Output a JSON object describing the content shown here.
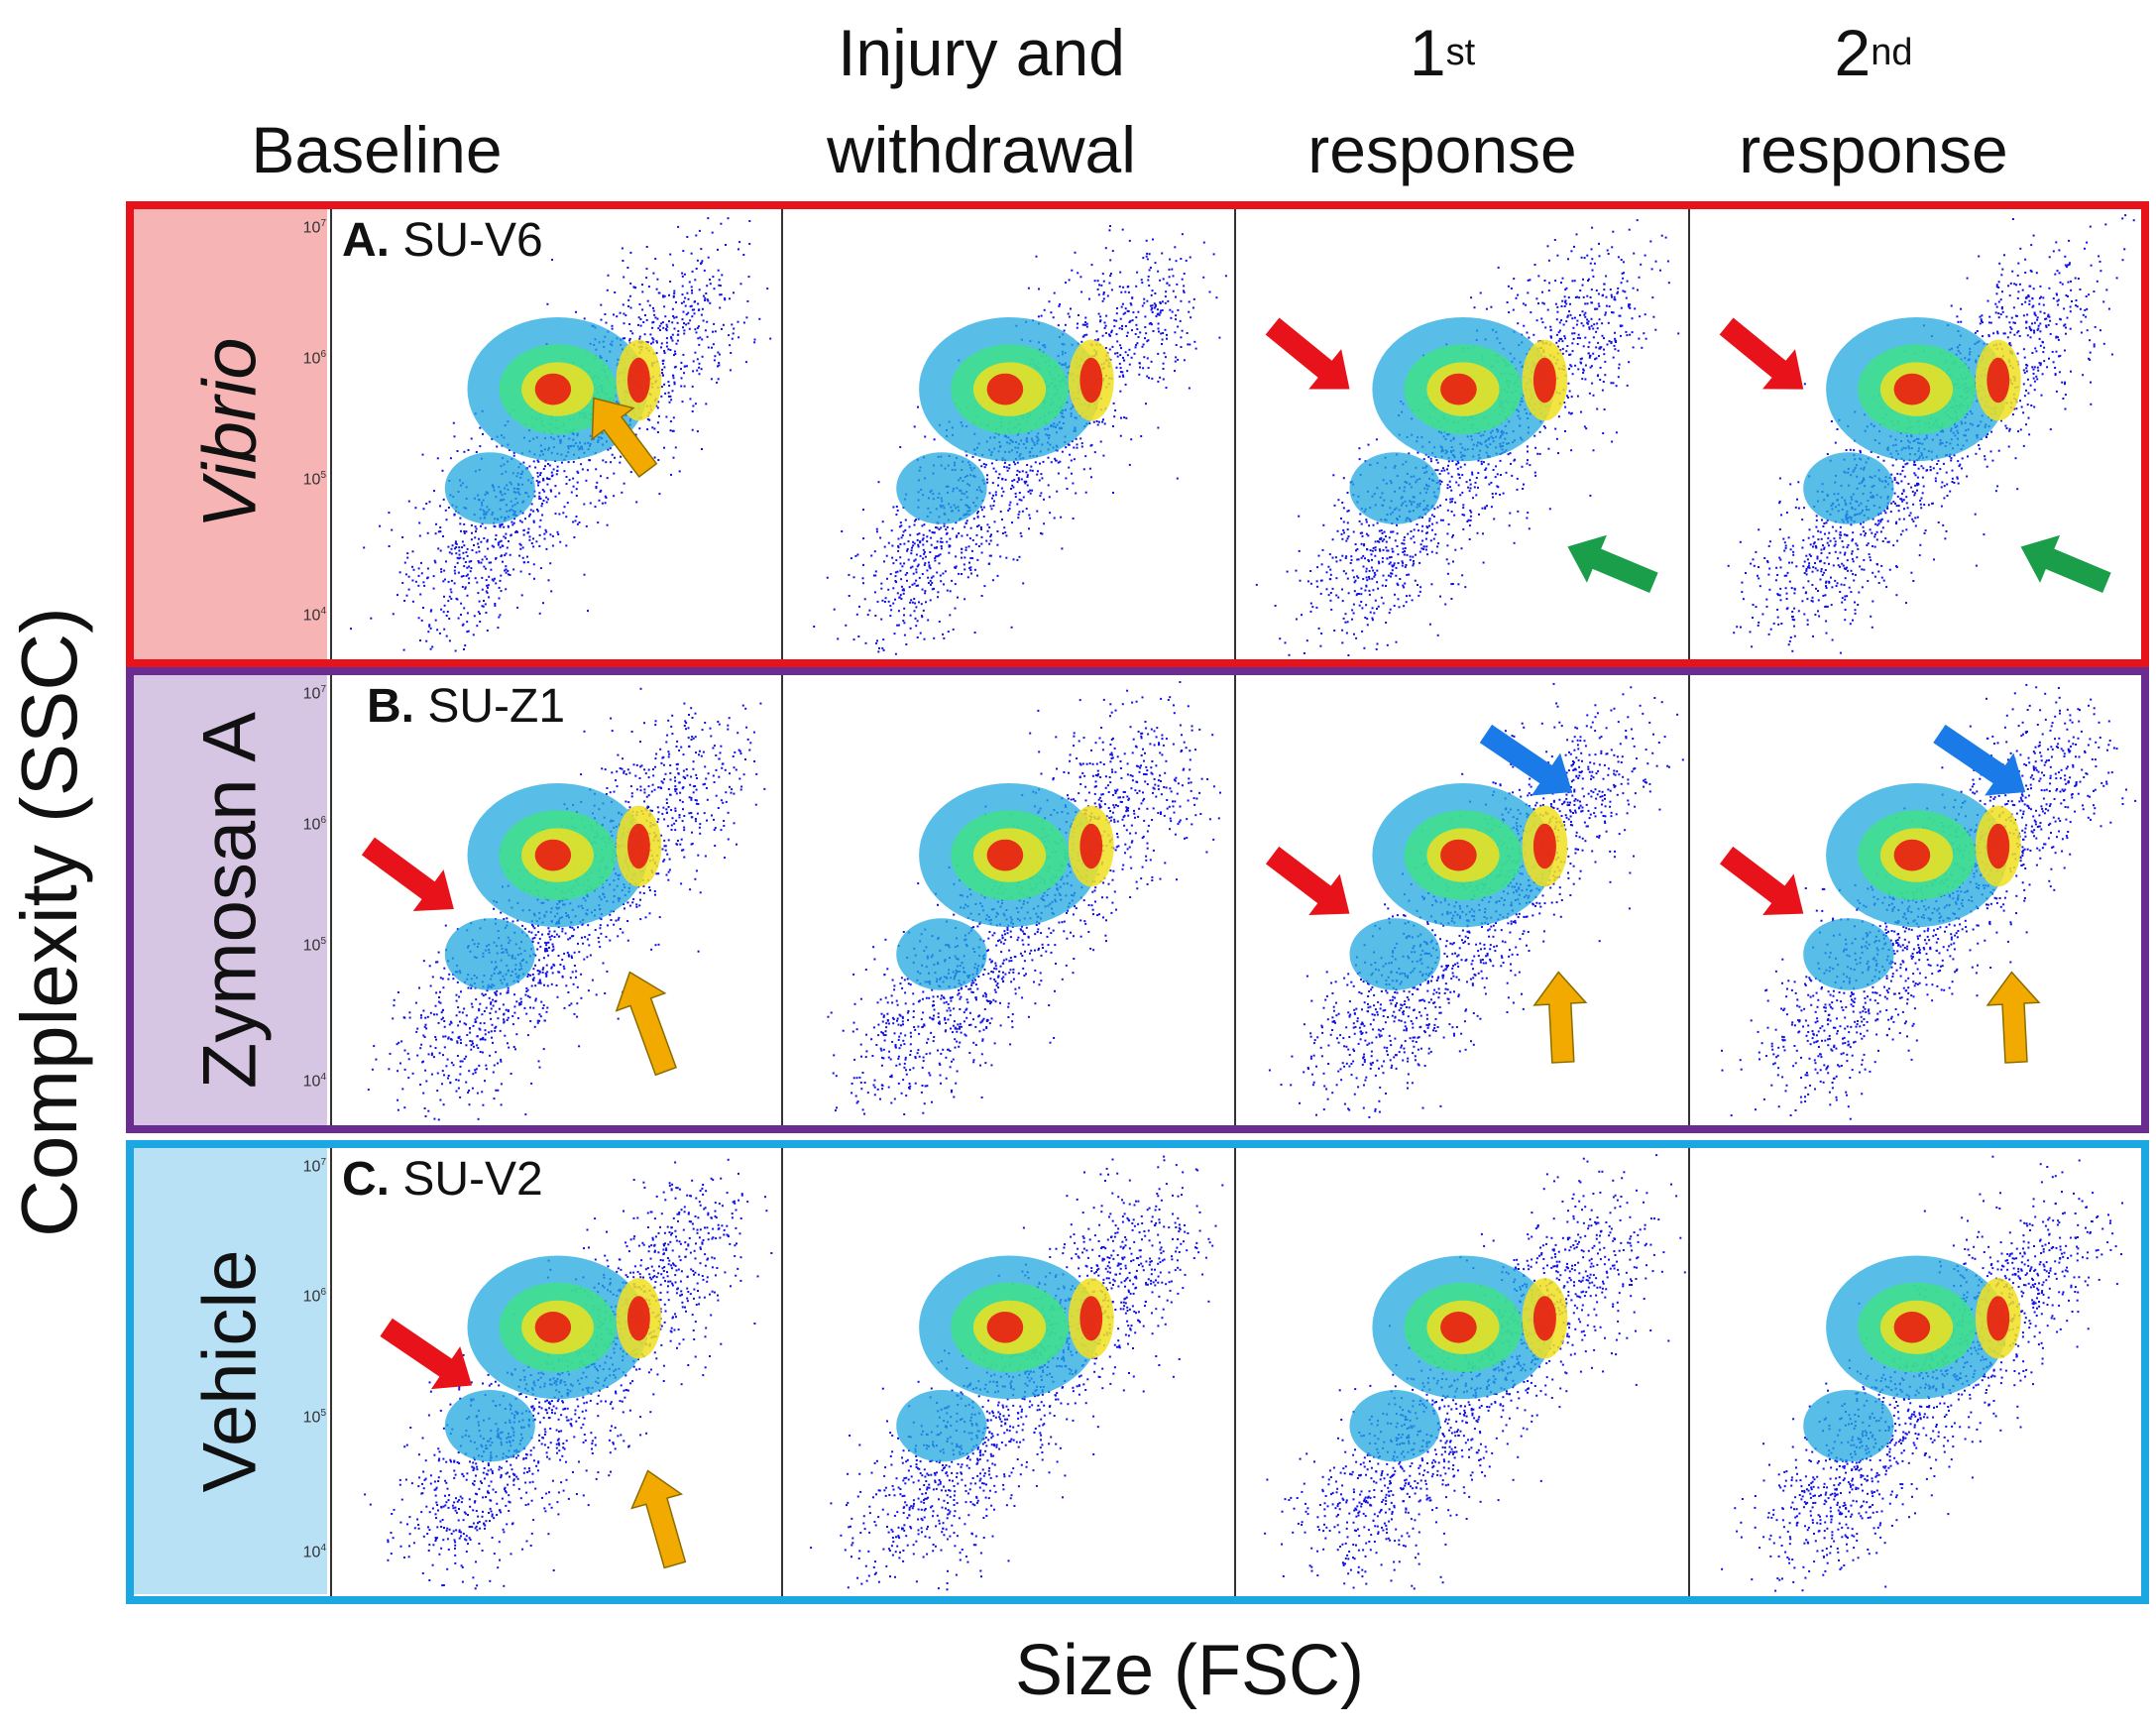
{
  "figure": {
    "columns": [
      {
        "line1": "",
        "line2": "Baseline",
        "sup": ""
      },
      {
        "line1": "Injury and",
        "line2": "withdrawal",
        "sup": ""
      },
      {
        "line1": "1",
        "sup": "st",
        "line2": "response"
      },
      {
        "line1": "2",
        "sup": "nd",
        "line2": "response"
      }
    ],
    "rows": [
      {
        "label": "Vibrio",
        "italic": true,
        "panel_letter": "A.",
        "panel_id": "SU-V6",
        "box_color": "#e8121a",
        "label_bg": "#f7b4b4"
      },
      {
        "label": "Zymosan A",
        "italic": false,
        "panel_letter": "B.",
        "panel_id": "SU-Z1",
        "box_color": "#6a2c91",
        "label_bg": "#d6c5e3"
      },
      {
        "label": "Vehicle",
        "italic": false,
        "panel_letter": "C.",
        "panel_id": "SU-V2",
        "box_color": "#1aa7e2",
        "label_bg": "#b8e1f6"
      }
    ],
    "y_ticks": [
      {
        "base": "10",
        "exp": "7"
      },
      {
        "base": "10",
        "exp": "6"
      },
      {
        "base": "10",
        "exp": "5"
      },
      {
        "base": "10",
        "exp": "4"
      }
    ],
    "y_axis_label": "Complexity (SSC)",
    "x_axis_label": "Size (FSC)",
    "arrow_colors": {
      "red": "#e8121a",
      "orange": "#f2a900",
      "green": "#1a9e4a",
      "blue": "#1a7ae8"
    },
    "density_colors": [
      "#1010e6",
      "#20a8e0",
      "#3ee08a",
      "#f0e020",
      "#e81010"
    ]
  }
}
